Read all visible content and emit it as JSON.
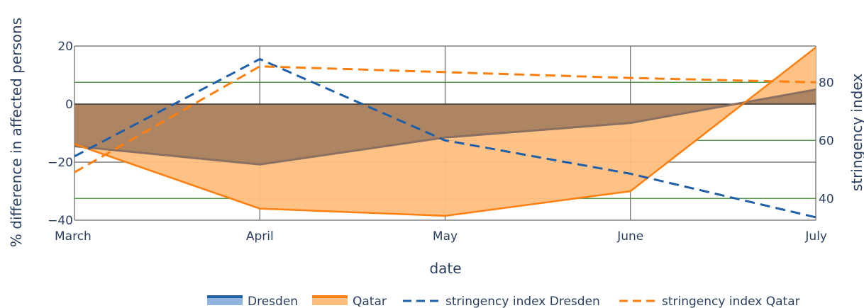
{
  "chart_data": {
    "type": "area",
    "x": [
      "March",
      "April",
      "May",
      "June",
      "July"
    ],
    "xlabel": "date",
    "ylabel": "% difference in affected persons",
    "y2label": "stringency index",
    "ylim": [
      -40,
      20
    ],
    "y2lim": [
      32.5,
      92.5
    ],
    "yticks": [
      20,
      0,
      -20,
      -40
    ],
    "y2ticks": [
      80,
      60,
      40
    ],
    "yticklabels": [
      "20",
      "0",
      "−20",
      "−40"
    ],
    "y2ticklabels": [
      "80",
      "60",
      "40"
    ],
    "series": [
      {
        "name": "Dresden",
        "axis": "left",
        "style": "area",
        "color": "#1f5fa8",
        "fill": "#a07a5c",
        "line": "#8a7060",
        "values": [
          -14.5,
          -20.8,
          -11.5,
          -6.5,
          5.0
        ]
      },
      {
        "name": "Qatar",
        "axis": "left",
        "style": "area",
        "color": "#ff7f0e",
        "fill": "#ffbf80",
        "values": [
          -13.8,
          -36.0,
          -38.5,
          -30.0,
          19.5
        ]
      },
      {
        "name": "stringency index Dresden",
        "axis": "right",
        "style": "dash",
        "color": "#1f5fa8",
        "values": [
          54.5,
          88.0,
          60.0,
          48.5,
          33.5
        ]
      },
      {
        "name": "stringency index Qatar",
        "axis": "right",
        "style": "dash",
        "color": "#ff7f0e",
        "values": [
          49.0,
          85.5,
          83.5,
          81.5,
          80.0
        ]
      }
    ],
    "grid": true,
    "legend_position": "bottom"
  }
}
